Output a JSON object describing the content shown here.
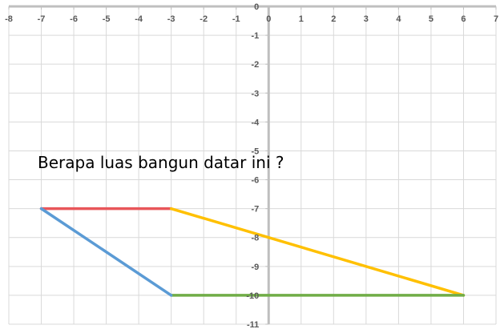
{
  "chart_data": {
    "type": "line",
    "question": "Berapa luas bangun datar ini ?",
    "xlim": [
      -8,
      7
    ],
    "ylim": [
      -11,
      0
    ],
    "x_ticks": [
      "-8",
      "-7",
      "-6",
      "-5",
      "-4",
      "-3",
      "-2",
      "-1",
      "0",
      "1",
      "2",
      "3",
      "4",
      "5",
      "6",
      "7"
    ],
    "y_ticks": [
      "0",
      "-1",
      "-2",
      "-3",
      "-4",
      "-5",
      "-6",
      "-7",
      "-8",
      "-9",
      "-10",
      "-11"
    ],
    "grid": true,
    "series": [
      {
        "color": "#E8565A",
        "points": [
          [
            -7,
            -7
          ],
          [
            -3,
            -7
          ]
        ]
      },
      {
        "color": "#FFC000",
        "points": [
          [
            -3,
            -7
          ],
          [
            6,
            -10
          ]
        ]
      },
      {
        "color": "#70AD47",
        "points": [
          [
            -3,
            -10
          ],
          [
            6,
            -10
          ]
        ]
      },
      {
        "color": "#5B9BD5",
        "points": [
          [
            -7,
            -7
          ],
          [
            -3,
            -10
          ]
        ]
      }
    ]
  }
}
